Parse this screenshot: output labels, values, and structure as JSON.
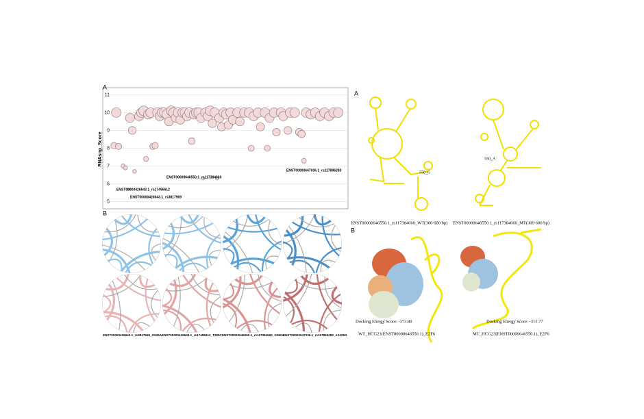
{
  "chart_data": {
    "type": "scatter",
    "y_label": "RNAsnp_Score",
    "xlim": [
      0,
      100
    ],
    "ylim": [
      4.6,
      11.4
    ],
    "yticks": [
      5,
      6,
      7,
      8,
      9,
      10,
      11
    ],
    "grid": true,
    "color": "#f2dada",
    "edge_color": "#9c7f7f",
    "x": [
      2,
      1,
      3,
      5,
      6,
      7,
      8,
      8,
      9,
      10,
      12,
      13,
      14,
      15,
      16,
      17,
      18,
      19,
      20,
      21,
      22,
      23,
      24,
      25,
      26,
      27,
      28,
      29,
      30,
      31,
      32,
      33,
      34,
      35,
      36,
      37,
      38,
      39,
      40,
      41,
      42,
      43,
      44,
      45,
      46,
      47,
      48,
      49,
      50,
      51,
      52,
      53,
      55,
      56,
      58,
      60,
      61,
      62,
      64,
      65,
      67,
      68,
      69,
      71,
      72,
      74,
      75,
      77,
      78,
      80,
      82,
      83,
      84,
      85,
      87,
      89,
      91,
      93,
      95,
      97,
      99
    ],
    "values": [
      10.0,
      8.15,
      8.1,
      7.0,
      6.9,
      5.7,
      5.7,
      9.7,
      9.0,
      6.7,
      9.8,
      10.0,
      10.1,
      7.4,
      9.9,
      10.0,
      8.1,
      8.15,
      10.0,
      9.8,
      10.0,
      10.0,
      9.9,
      9.5,
      10.1,
      10.0,
      9.7,
      10.0,
      9.6,
      10.0,
      10.0,
      9.8,
      10.0,
      8.4,
      9.9,
      10.0,
      10.0,
      9.7,
      6.3,
      10.0,
      9.8,
      10.1,
      9.4,
      10.0,
      6.3,
      9.7,
      9.2,
      10.0,
      9.9,
      9.3,
      10.0,
      9.6,
      10.0,
      9.5,
      10.0,
      10.0,
      8.0,
      9.8,
      10.0,
      9.2,
      10.0,
      8.0,
      9.7,
      10.0,
      8.9,
      10.0,
      9.8,
      9.0,
      10.0,
      10.0,
      8.9,
      8.8,
      7.3,
      10.0,
      9.9,
      10.0,
      9.8,
      10.0,
      9.8,
      10.0,
      10.0
    ],
    "annotations": [
      "ENST00000426643.1_rs17495612",
      "ENST00000426643.1_rs3817969",
      "ENST00000646550.1_rs117384660",
      "ENST00000647036.1_rs117896283"
    ]
  },
  "panel_labels": [
    "A",
    "B",
    "A",
    "B"
  ],
  "arc_labels": [
    "ENST00000426643.1_rs3817969_G535A",
    "ENST00000426643.1_rs17495612_T285C",
    "ENST00000646550.1_rs117384660_G550A",
    "ENST00000647036.1_rs117896283_A1229G"
  ],
  "structures": [
    {
      "mutation_label": "550_G",
      "caption": "ENST00000646550.1_rs117384660_WT(300-600 bp)"
    },
    {
      "mutation_label": "550_A",
      "caption": "ENST00000646550.1_rs117384660_MT(300-600 bp)"
    }
  ],
  "docking": [
    {
      "score": "Docking Energy Score:  -373.80",
      "caption": "WT_HCG23(ENST00000646550.1)_E2F6"
    },
    {
      "score": "Docking Energy Score:  -313.77",
      "caption": "MT_HCG23(ENST00000646550.1)_E2F6"
    }
  ]
}
